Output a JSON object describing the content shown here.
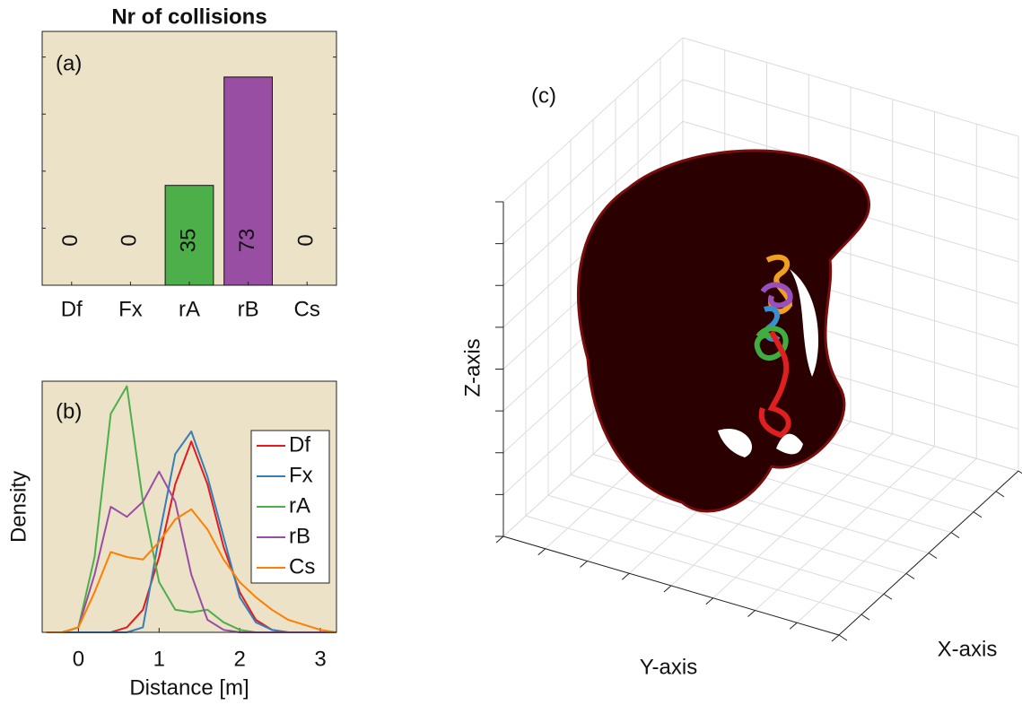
{
  "chart_data": [
    {
      "type": "bar",
      "title": "Nr of collisions",
      "annotation": "(a)",
      "categories": [
        "Df",
        "Fx",
        "rA",
        "rB",
        "Cs"
      ],
      "values": [
        0,
        0,
        35,
        73,
        0
      ],
      "colors": [
        "#d62728",
        "#1f77b4",
        "#4daf4a",
        "#984ea3",
        "#ff7f0e"
      ],
      "ylim": [
        0,
        89
      ],
      "yticks": [
        20,
        40,
        60,
        80
      ],
      "data_labels": true,
      "background": "#ebe2c8"
    },
    {
      "type": "line",
      "annotation": "(b)",
      "xlabel": "Distance [m]",
      "ylabel": "Density",
      "x": [
        -0.4,
        -0.2,
        0,
        0.2,
        0.4,
        0.6,
        0.8,
        1.0,
        1.2,
        1.4,
        1.6,
        1.8,
        2.0,
        2.2,
        2.4,
        2.6,
        2.8,
        3.0,
        3.2
      ],
      "series": [
        {
          "name": "Df",
          "color": "#e41a1c",
          "values": [
            0,
            0,
            0,
            0,
            0,
            0.02,
            0.09,
            0.3,
            0.59,
            0.76,
            0.59,
            0.34,
            0.16,
            0.05,
            0.01,
            0,
            0,
            0,
            0
          ]
        },
        {
          "name": "Fx",
          "color": "#377eb8",
          "values": [
            0,
            0,
            0,
            0,
            0,
            0,
            0.02,
            0.38,
            0.71,
            0.8,
            0.62,
            0.38,
            0.14,
            0.04,
            0.01,
            0,
            0,
            0,
            0
          ]
        },
        {
          "name": "rA",
          "color": "#4daf4a",
          "values": [
            0,
            0,
            0.02,
            0.3,
            0.87,
            0.98,
            0.52,
            0.2,
            0.09,
            0.08,
            0.09,
            0.04,
            0.01,
            0,
            0,
            0,
            0,
            0,
            0
          ]
        },
        {
          "name": "rB",
          "color": "#984ea3",
          "values": [
            0,
            0,
            0.02,
            0.23,
            0.5,
            0.46,
            0.52,
            0.64,
            0.52,
            0.23,
            0.05,
            0.01,
            0,
            0,
            0,
            0,
            0,
            0,
            0
          ]
        },
        {
          "name": "Cs",
          "color": "#ff7f00",
          "values": [
            0,
            0,
            0.02,
            0.16,
            0.32,
            0.3,
            0.29,
            0.36,
            0.45,
            0.49,
            0.41,
            0.29,
            0.2,
            0.14,
            0.09,
            0.05,
            0.03,
            0.01,
            0
          ]
        }
      ],
      "xlim": [
        -0.45,
        3.2
      ],
      "xticks": [
        0,
        1,
        2,
        3
      ],
      "ylim": [
        0,
        1
      ],
      "legend": "east",
      "background": "#ebe2c8"
    },
    {
      "type": "3d",
      "annotation": "(c)",
      "xlabel": "X-axis",
      "ylabel": "Y-axis",
      "zlabel": "Z-axis"
    }
  ]
}
